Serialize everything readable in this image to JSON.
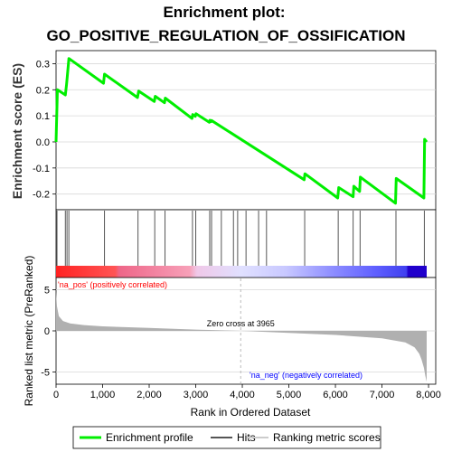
{
  "chart_data": {
    "type": "line",
    "title_line1": "Enrichment plot:",
    "title_line2": "GO_POSITIVE_REGULATION_OF_OSSIFICATION",
    "top_panel": {
      "ylabel": "Enrichment score (ES)",
      "ylim": [
        -0.26,
        0.35
      ],
      "yticks": [
        -0.2,
        -0.1,
        0.0,
        0.1,
        0.2,
        0.3
      ],
      "ytick_labels": [
        "-0.2",
        "-0.1",
        "0.0",
        "0.1",
        "0.2",
        "0.3"
      ],
      "line_color": "#00ee00",
      "series": [
        {
          "name": "Enrichment profile",
          "x": [
            0,
            30,
            200,
            225,
            240,
            275,
            1020,
            1040,
            1750,
            1775,
            2110,
            2130,
            2330,
            2345,
            2920,
            2935,
            2990,
            3005,
            3290,
            3305,
            3330,
            3340,
            5330,
            5345,
            6050,
            6070,
            6380,
            6395,
            6520,
            6535,
            7290,
            7305,
            7900,
            7915,
            7960
          ],
          "y": [
            0.0,
            0.2,
            0.18,
            0.22,
            0.25,
            0.32,
            0.225,
            0.26,
            0.17,
            0.195,
            0.155,
            0.175,
            0.15,
            0.168,
            0.09,
            0.105,
            0.098,
            0.108,
            0.075,
            0.083,
            0.078,
            0.082,
            -0.145,
            -0.122,
            -0.215,
            -0.175,
            -0.21,
            -0.17,
            -0.19,
            -0.135,
            -0.235,
            -0.14,
            -0.215,
            0.01,
            0.0
          ]
        }
      ]
    },
    "hits": {
      "label": "Hits",
      "positions": [
        20,
        200,
        235,
        275,
        1040,
        1760,
        2120,
        2340,
        2930,
        3000,
        3300,
        3340,
        3550,
        3810,
        3900,
        4080,
        4350,
        4520,
        5340,
        6060,
        6380,
        6530,
        7300,
        7910
      ]
    },
    "bottom_panel": {
      "ylabel": "Ranked list metric (PreRanked)",
      "xlabel": "Rank in Ordered Dataset",
      "ylim": [
        -6.5,
        6.5
      ],
      "yticks": [
        -5,
        0,
        5
      ],
      "ytick_labels": [
        "-5",
        "0",
        "5"
      ],
      "xlim": [
        0,
        8000
      ],
      "xticks": [
        0,
        1000,
        2000,
        3000,
        4000,
        5000,
        6000,
        7000,
        8000
      ],
      "xtick_labels": [
        "0",
        "1,000",
        "2,000",
        "3,000",
        "4,000",
        "5,000",
        "6,000",
        "7,000",
        "8,000"
      ],
      "zero_cross": 3965,
      "zero_cross_label": "Zero cross at 3965",
      "pos_label": "'na_pos' (positively correlated)",
      "neg_label": "'na_neg' (negatively correlated)",
      "pos_label_color": "#ff0000",
      "neg_label_color": "#0000ff",
      "fill_color": "#b0b0b0",
      "metric_curve": {
        "x": [
          0,
          20,
          60,
          150,
          300,
          600,
          1000,
          2000,
          3000,
          3965,
          5000,
          6000,
          7000,
          7500,
          7700,
          7800,
          7850,
          7900,
          7930,
          7960
        ],
        "y": [
          4.8,
          3.0,
          1.8,
          1.2,
          0.9,
          0.7,
          0.55,
          0.35,
          0.15,
          0.0,
          -0.25,
          -0.5,
          -0.9,
          -1.4,
          -2.0,
          -2.8,
          -3.5,
          -4.5,
          -5.5,
          -6.2
        ]
      }
    },
    "gradient_bar": {
      "xlim": [
        0,
        7960
      ],
      "stops": [
        "#ff0000",
        "#ff6666",
        "#ffbbdd",
        "#ddddff",
        "#8888ff",
        "#0000dd"
      ]
    },
    "legend": [
      {
        "label": "Enrichment profile",
        "color": "#00ee00"
      },
      {
        "label": "Hits",
        "color": "#333333"
      },
      {
        "label": "Ranking metric scores",
        "color": "#cccccc"
      }
    ]
  }
}
